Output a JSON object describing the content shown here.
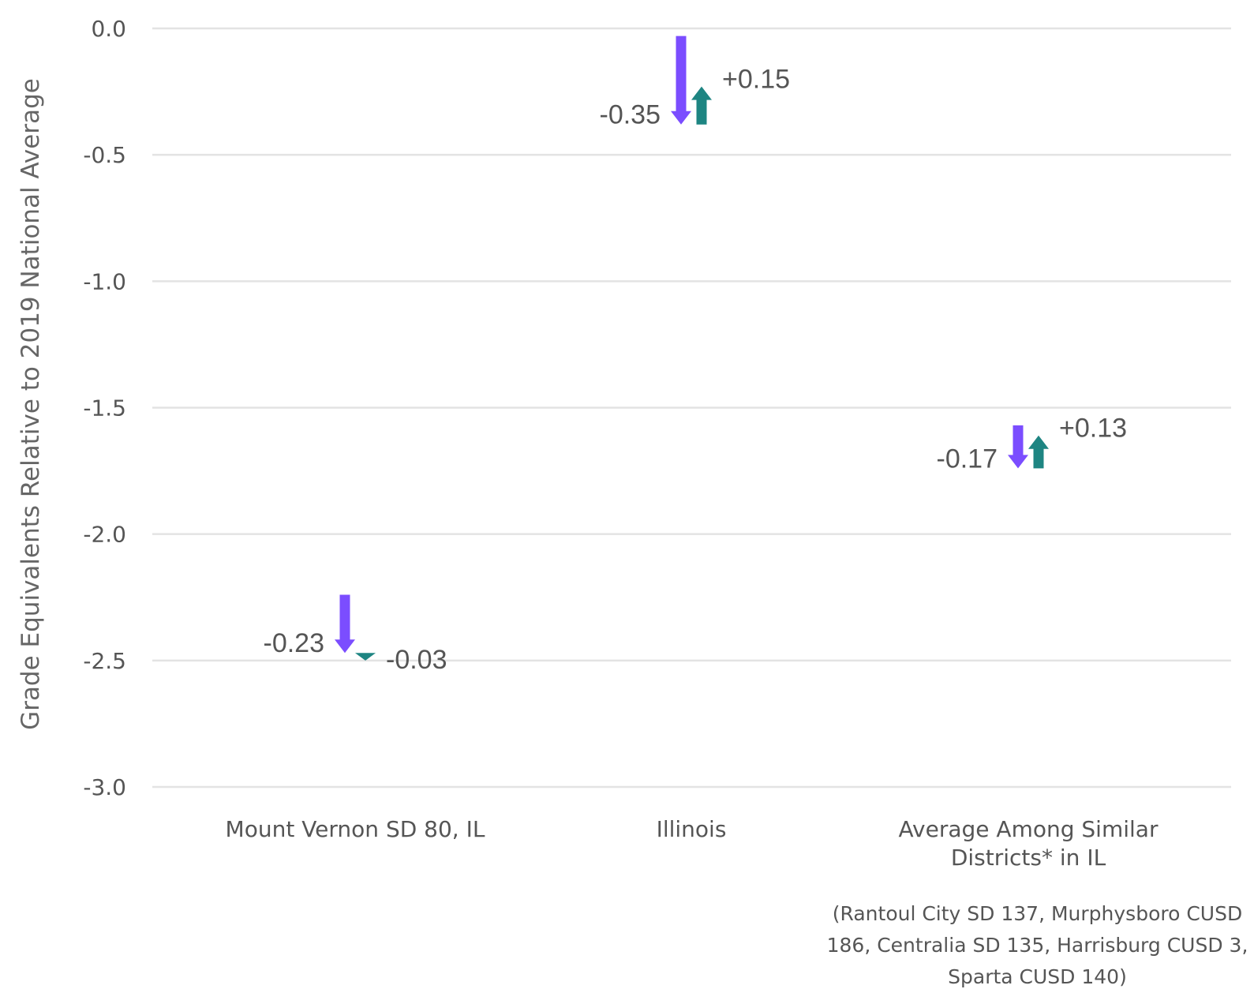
{
  "chart_data": {
    "type": "arrow",
    "ylabel": "Grade Equivalents Relative to 2019 National Average",
    "ylim": [
      -3.0,
      0.0
    ],
    "yticks": [
      0.0,
      -0.5,
      -1.0,
      -1.5,
      -2.0,
      -2.5,
      -3.0
    ],
    "ytick_labels": [
      "0.0",
      "-0.5",
      "-1.0",
      "-1.5",
      "-2.0",
      "-2.5",
      "-3.0"
    ],
    "grid": true,
    "categories": [
      {
        "name_lines": [
          "Mount Vernon SD 80, IL"
        ]
      },
      {
        "name_lines": [
          "Illinois"
        ]
      },
      {
        "name_lines": [
          "Average Among Similar",
          "Districts* in IL"
        ]
      }
    ],
    "series": [
      {
        "start": [
          -2.24,
          -0.03,
          -1.57
        ],
        "change": [
          -0.23,
          -0.35,
          -0.17
        ],
        "labels": [
          "-0.23",
          "-0.35",
          "-0.17"
        ],
        "color": "#7B4DFF"
      },
      {
        "start": [
          -2.47,
          -0.38,
          -1.74
        ],
        "change": [
          -0.03,
          0.15,
          0.13
        ],
        "labels": [
          "-0.03",
          "+0.15",
          "+0.13"
        ],
        "color": "#1E8582"
      }
    ],
    "note_lines": [
      "(Rantoul City SD 137, Murphysboro CUSD",
      "186, Centralia SD 135, Harrisburg CUSD 3,",
      "Sparta CUSD 140)"
    ]
  }
}
